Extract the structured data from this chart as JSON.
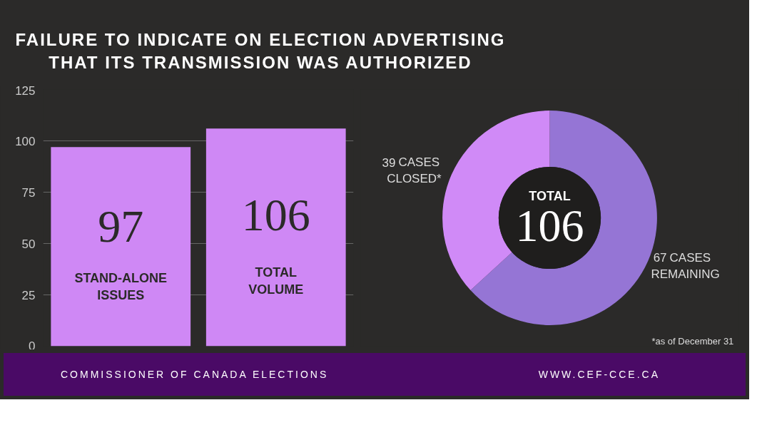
{
  "chart_data": [
    {
      "type": "bar",
      "title": "FAILURE TO INDICATE ON ELECTION ADVERTISING THAT ITS TRANSMISSION WAS AUTHORIZED",
      "categories": [
        "STAND-ALONE ISSUES",
        "TOTAL VOLUME"
      ],
      "values": [
        97,
        106
      ],
      "color": "#cf88f5",
      "ylim": [
        0,
        125
      ],
      "yticks": [
        0,
        25,
        50,
        75,
        100,
        125
      ],
      "grid": "y",
      "data_labels": true,
      "legend": false
    },
    {
      "type": "donut",
      "categories": [
        "CASES REMAINING",
        "CASES CLOSED*"
      ],
      "values": [
        67,
        39
      ],
      "colors": [
        "#9575d5",
        "#d08af7"
      ],
      "data_labels": true,
      "legend": false,
      "annotations": [
        "TOTAL",
        "106",
        "*as of December 31",
        "COMMISSIONER OF CANADA ELECTIONS",
        "WWW.CEF-CCE.CA"
      ]
    }
  ]
}
